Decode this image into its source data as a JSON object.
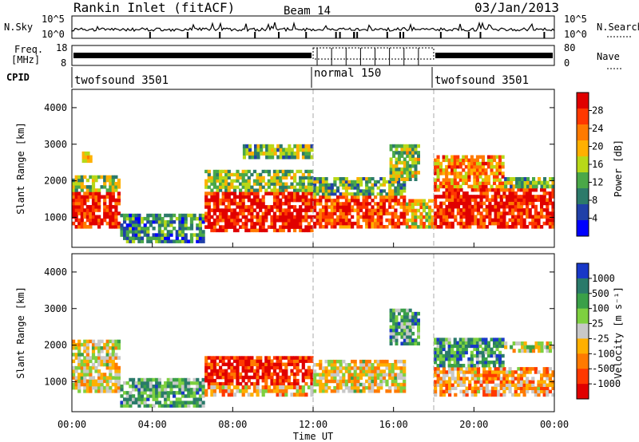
{
  "header": {
    "station": "Rankin Inlet (fitACF)",
    "beam": "Beam 14",
    "date": "03/Jan/2013"
  },
  "noise_panel": {
    "left_label": "N.Sky",
    "right_label": "N.Search",
    "left_ticks": [
      "10^5",
      "10^0"
    ],
    "right_ticks": [
      "10^5",
      "10^0"
    ]
  },
  "freq_panel": {
    "left_label_1": "Freq.",
    "left_label_2": "[MHz]",
    "right_label": "Nave",
    "left_ticks": [
      "18",
      "8"
    ],
    "right_ticks": [
      "80",
      "0"
    ]
  },
  "cpid_panel": {
    "label": "CPID",
    "segments": [
      {
        "label": "twofsound 3501",
        "start": 0,
        "end": 12
      },
      {
        "label": "normal 150",
        "start": 12,
        "end": 18
      },
      {
        "label": "twofsound 3501",
        "start": 18,
        "end": 24
      }
    ]
  },
  "chart_data": [
    {
      "type": "heatmap",
      "title": "",
      "quantity": "Power",
      "ylabel": "Slant Range [km]",
      "xlabel": "",
      "x_range_hours": [
        0,
        24
      ],
      "ylim": [
        180,
        4500
      ],
      "yticks": [
        1000,
        2000,
        3000,
        4000
      ],
      "colorbar": {
        "label": "Power [dB]",
        "ticks": [
          "28",
          "24",
          "20",
          "16",
          "12",
          "8",
          "4"
        ],
        "colors": [
          "#e00000",
          "#ff3800",
          "#ff7a00",
          "#ffb000",
          "#b8d818",
          "#4aa848",
          "#2c7a6a",
          "#2040a8",
          "#0000ff"
        ]
      },
      "regions": [
        {
          "t": [
            0.0,
            2.4
          ],
          "r": [
            700,
            1700
          ],
          "level": 0.9
        },
        {
          "t": [
            0.0,
            2.4
          ],
          "r": [
            1700,
            2150
          ],
          "level": 0.45
        },
        {
          "t": [
            0.5,
            1.0
          ],
          "r": [
            2500,
            2800
          ],
          "level": 0.55
        },
        {
          "t": [
            2.4,
            6.6
          ],
          "r": [
            300,
            1100
          ],
          "level": 0.3
        },
        {
          "t": [
            6.6,
            12.0
          ],
          "r": [
            600,
            1700
          ],
          "level": 0.92
        },
        {
          "t": [
            6.6,
            12.0
          ],
          "r": [
            1700,
            2300
          ],
          "level": 0.45
        },
        {
          "t": [
            8.5,
            12.0
          ],
          "r": [
            2600,
            3000
          ],
          "level": 0.4
        },
        {
          "t": [
            12.0,
            16.6
          ],
          "r": [
            700,
            1600
          ],
          "level": 0.85
        },
        {
          "t": [
            12.0,
            16.6
          ],
          "r": [
            1600,
            2100
          ],
          "level": 0.4
        },
        {
          "t": [
            15.8,
            17.3
          ],
          "r": [
            2000,
            3000
          ],
          "level": 0.45
        },
        {
          "t": [
            16.6,
            18.0
          ],
          "r": [
            700,
            1500
          ],
          "level": 0.6
        },
        {
          "t": [
            18.0,
            24.0
          ],
          "r": [
            700,
            1800
          ],
          "level": 0.9
        },
        {
          "t": [
            18.0,
            21.5
          ],
          "r": [
            1800,
            2700
          ],
          "level": 0.7
        },
        {
          "t": [
            21.5,
            24.0
          ],
          "r": [
            1800,
            2100
          ],
          "level": 0.4
        }
      ]
    },
    {
      "type": "heatmap",
      "title": "",
      "quantity": "Velocity",
      "ylabel": "Slant Range [km]",
      "xlabel": "Time UT",
      "x_range_hours": [
        0,
        24
      ],
      "ylim": [
        180,
        4500
      ],
      "yticks": [
        1000,
        2000,
        3000,
        4000
      ],
      "xticks": [
        "00:00",
        "04:00",
        "08:00",
        "12:00",
        "16:00",
        "20:00",
        "00:00"
      ],
      "colorbar": {
        "label": "Velocity [m s^-1]",
        "ticks": [
          "1000",
          "500",
          "100",
          "25",
          "-25",
          "-100",
          "-500",
          "-1000"
        ],
        "colors": [
          "#1838c8",
          "#2a7a6a",
          "#3aa048",
          "#7ed040",
          "#c8c8c8",
          "#ffb000",
          "#ff7a00",
          "#ff3800",
          "#e00000"
        ]
      },
      "regions": [
        {
          "t": [
            0.0,
            2.4
          ],
          "r": [
            700,
            1700
          ],
          "level": 0.45
        },
        {
          "t": [
            0.0,
            2.4
          ],
          "r": [
            1700,
            2150
          ],
          "level": 0.5
        },
        {
          "t": [
            2.4,
            6.6
          ],
          "r": [
            300,
            1100
          ],
          "level": 0.7
        },
        {
          "t": [
            6.6,
            12.0
          ],
          "r": [
            900,
            1700
          ],
          "level": 0.1
        },
        {
          "t": [
            6.6,
            12.0
          ],
          "r": [
            600,
            900
          ],
          "level": 0.4
        },
        {
          "t": [
            12.0,
            16.6
          ],
          "r": [
            700,
            1600
          ],
          "level": 0.45
        },
        {
          "t": [
            15.8,
            17.3
          ],
          "r": [
            2000,
            3000
          ],
          "level": 0.7
        },
        {
          "t": [
            18.0,
            24.0
          ],
          "r": [
            600,
            1400
          ],
          "level": 0.35
        },
        {
          "t": [
            18.0,
            21.5
          ],
          "r": [
            1400,
            2200
          ],
          "level": 0.75
        },
        {
          "t": [
            21.5,
            24.0
          ],
          "r": [
            1800,
            2100
          ],
          "level": 0.5
        }
      ]
    }
  ],
  "axis_labels": {
    "slant_range": "Slant Range [km]",
    "time": "Time UT",
    "power_cb": "Power [dB]",
    "velocity_cb": "Velocity [m s⁻¹]"
  }
}
